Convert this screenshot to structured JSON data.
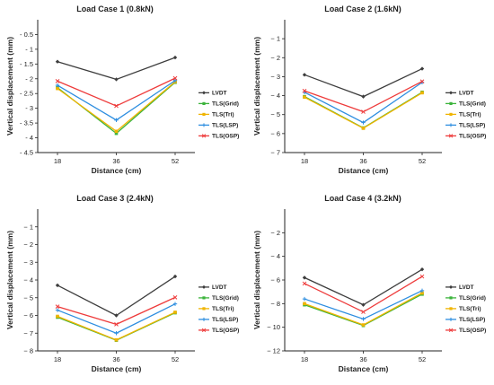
{
  "colors": {
    "LVDT": "#3d3d3d",
    "TLS(Grid)": "#3cb43c",
    "TLS(Tri)": "#f0b400",
    "TLS(LSP)": "#2e8ee0",
    "TLS(OSP)": "#ee3b3b"
  },
  "chart_data": [
    {
      "type": "line",
      "title": "Load Case 1 (0.8kN)",
      "xlabel": "Distance (cm)",
      "ylabel": "Vertical displacement (mm)",
      "categories": [
        "18",
        "36",
        "52"
      ],
      "ylim": [
        -4.5,
        0
      ],
      "yticks": [
        -0.5,
        -1,
        -1.5,
        -2,
        -2.5,
        -3,
        -3.5,
        -4,
        -4.5
      ],
      "ytick_labels": [
        "- 0.5",
        "- 1",
        "- 1.5",
        "- 2",
        "- 2.5",
        "- 3",
        "- 3.5",
        "- 4",
        "- 4.5"
      ],
      "legend_position": "right",
      "series": [
        {
          "name": "LVDT",
          "values": [
            -1.42,
            -2.02,
            -1.28
          ]
        },
        {
          "name": "TLS(Grid)",
          "values": [
            -2.3,
            -3.85,
            -2.12
          ]
        },
        {
          "name": "TLS(Tri)",
          "values": [
            -2.33,
            -3.78,
            -2.1
          ]
        },
        {
          "name": "TLS(LSP)",
          "values": [
            -2.22,
            -3.4,
            -2.06
          ]
        },
        {
          "name": "TLS(OSP)",
          "values": [
            -2.08,
            -2.92,
            -1.98
          ]
        }
      ]
    },
    {
      "type": "line",
      "title": "Load Case 2 (1.6kN)",
      "xlabel": "Distance (cm)",
      "ylabel": "Vertical displacement (mm)",
      "categories": [
        "18",
        "36",
        "52"
      ],
      "ylim": [
        -7,
        0
      ],
      "yticks": [
        -1,
        -2,
        -3,
        -4,
        -5,
        -6,
        -7
      ],
      "ytick_labels": [
        "− 1",
        "− 2",
        "− 3",
        "− 4",
        "− 5",
        "− 6",
        "− 7"
      ],
      "legend_position": "right",
      "series": [
        {
          "name": "LVDT",
          "values": [
            -2.9,
            -4.05,
            -2.58
          ]
        },
        {
          "name": "TLS(Grid)",
          "values": [
            -4.05,
            -5.7,
            -3.82
          ]
        },
        {
          "name": "TLS(Tri)",
          "values": [
            -4.08,
            -5.72,
            -3.85
          ]
        },
        {
          "name": "TLS(LSP)",
          "values": [
            -3.82,
            -5.42,
            -3.3
          ]
        },
        {
          "name": "TLS(OSP)",
          "values": [
            -3.75,
            -4.85,
            -3.25
          ]
        }
      ]
    },
    {
      "type": "line",
      "title": "Load Case 3 (2.4kN)",
      "xlabel": "Distance (cm)",
      "ylabel": "Vertical displacement (mm)",
      "categories": [
        "18",
        "36",
        "52"
      ],
      "ylim": [
        -8,
        0
      ],
      "yticks": [
        -1,
        -2,
        -3,
        -4,
        -5,
        -6,
        -7,
        -8
      ],
      "ytick_labels": [
        "− 1",
        "− 2",
        "− 3",
        "− 4",
        "− 5",
        "− 6",
        "− 7",
        "− 8"
      ],
      "legend_position": "right",
      "series": [
        {
          "name": "LVDT",
          "values": [
            -4.3,
            -6.0,
            -3.8
          ]
        },
        {
          "name": "TLS(Grid)",
          "values": [
            -6.1,
            -7.4,
            -5.85
          ]
        },
        {
          "name": "TLS(Tri)",
          "values": [
            -6.05,
            -7.38,
            -5.82
          ]
        },
        {
          "name": "TLS(LSP)",
          "values": [
            -5.7,
            -7.0,
            -5.35
          ]
        },
        {
          "name": "TLS(OSP)",
          "values": [
            -5.5,
            -6.5,
            -4.98
          ]
        }
      ]
    },
    {
      "type": "line",
      "title": "Load Case 4 (3.2kN)",
      "xlabel": "Distance (cm)",
      "ylabel": "Vertical displacement (mm)",
      "categories": [
        "18",
        "36",
        "52"
      ],
      "ylim": [
        -12,
        0
      ],
      "yticks": [
        -2,
        -4,
        -6,
        -8,
        -10,
        -12
      ],
      "ytick_labels": [
        "− 2",
        "− 4",
        "− 6",
        "− 8",
        "− 10",
        "− 12"
      ],
      "legend_position": "right",
      "series": [
        {
          "name": "LVDT",
          "values": [
            -5.8,
            -8.1,
            -5.1
          ]
        },
        {
          "name": "TLS(Grid)",
          "values": [
            -8.1,
            -9.85,
            -7.2
          ]
        },
        {
          "name": "TLS(Tri)",
          "values": [
            -8.0,
            -9.8,
            -7.1
          ]
        },
        {
          "name": "TLS(LSP)",
          "values": [
            -7.6,
            -9.3,
            -6.9
          ]
        },
        {
          "name": "TLS(OSP)",
          "values": [
            -6.3,
            -8.7,
            -5.7
          ]
        }
      ]
    }
  ]
}
